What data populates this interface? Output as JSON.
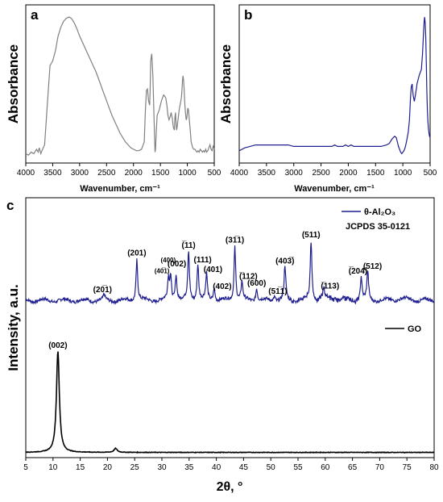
{
  "chart_data": [
    {
      "panel": "a",
      "type": "line",
      "xlabel": "Wavenumber, cm⁻¹",
      "ylabel": "Absorbance",
      "xlim": [
        4000,
        500
      ],
      "x_reversed": true,
      "xticks": [
        "4000",
        "3500",
        "3000",
        "2500",
        "2000",
        "1500",
        "1000",
        "500"
      ],
      "ylim": [
        0,
        1
      ],
      "y_tick_labels": false,
      "color": "#808080",
      "series": [
        {
          "x": [
            4000,
            3950,
            3900,
            3850,
            3800,
            3770,
            3750,
            3720,
            3700,
            3650,
            3600,
            3550,
            3500,
            3450,
            3400,
            3350,
            3300,
            3250,
            3200,
            3150,
            3100,
            3050,
            3000,
            2950,
            2900,
            2850,
            2800,
            2750,
            2700,
            2650,
            2600,
            2550,
            2500,
            2450,
            2400,
            2350,
            2300,
            2250,
            2200,
            2150,
            2100,
            2050,
            2000,
            1950,
            1900,
            1850,
            1800,
            1780,
            1760,
            1740,
            1720,
            1700,
            1690,
            1680,
            1660,
            1640,
            1625,
            1610,
            1600,
            1590,
            1575,
            1560,
            1540,
            1520,
            1500,
            1480,
            1460,
            1440,
            1420,
            1400,
            1380,
            1360,
            1340,
            1320,
            1300,
            1280,
            1260,
            1240,
            1230,
            1220,
            1210,
            1200,
            1190,
            1170,
            1150,
            1130,
            1110,
            1100,
            1090,
            1080,
            1070,
            1060,
            1050,
            1040,
            1030,
            1020,
            1010,
            1000,
            990,
            980,
            970,
            960,
            950,
            940,
            930,
            900,
            880,
            860,
            840,
            820,
            800,
            780,
            760,
            740,
            720,
            700,
            680,
            660,
            640,
            620,
            600,
            580,
            560,
            540,
            520,
            500
          ],
          "y": [
            0.02,
            0.01,
            0.03,
            0.02,
            0.05,
            0.03,
            0.06,
            0.02,
            0.04,
            0.08,
            0.35,
            0.62,
            0.65,
            0.72,
            0.82,
            0.88,
            0.92,
            0.94,
            0.95,
            0.94,
            0.91,
            0.87,
            0.82,
            0.78,
            0.74,
            0.7,
            0.66,
            0.62,
            0.58,
            0.53,
            0.48,
            0.43,
            0.38,
            0.33,
            0.28,
            0.24,
            0.2,
            0.16,
            0.13,
            0.1,
            0.08,
            0.06,
            0.05,
            0.04,
            0.04,
            0.05,
            0.1,
            0.3,
            0.45,
            0.46,
            0.38,
            0.35,
            0.45,
            0.65,
            0.7,
            0.55,
            0.35,
            0.15,
            0.03,
            0.05,
            0.18,
            0.28,
            0.3,
            0.32,
            0.35,
            0.38,
            0.4,
            0.42,
            0.41,
            0.4,
            0.35,
            0.28,
            0.25,
            0.27,
            0.3,
            0.26,
            0.2,
            0.18,
            0.27,
            0.3,
            0.24,
            0.18,
            0.2,
            0.26,
            0.32,
            0.36,
            0.4,
            0.45,
            0.52,
            0.55,
            0.52,
            0.46,
            0.38,
            0.32,
            0.28,
            0.25,
            0.26,
            0.3,
            0.33,
            0.32,
            0.28,
            0.24,
            0.2,
            0.15,
            0.1,
            0.06,
            0.05,
            0.05,
            0.04,
            0.03,
            0.04,
            0.03,
            0.05,
            0.04,
            0.03,
            0.04,
            0.03,
            0.05,
            0.03,
            0.04,
            0.06,
            0.08,
            0.05,
            0.04,
            0.07,
            0.05
          ]
        }
      ]
    },
    {
      "panel": "b",
      "type": "line",
      "xlabel": "Wavenumber, cm⁻¹",
      "ylabel": "Absorbance",
      "xlim": [
        4000,
        500
      ],
      "x_reversed": true,
      "xticks": [
        "4000",
        "3500",
        "3000",
        "2500",
        "2000",
        "1500",
        "1000",
        "500"
      ],
      "ylim": [
        0,
        1
      ],
      "y_tick_labels": false,
      "color": "#1f1f8f",
      "series": [
        {
          "x": [
            4000,
            3950,
            3900,
            3800,
            3700,
            3600,
            3500,
            3400,
            3300,
            3200,
            3100,
            3000,
            2900,
            2800,
            2700,
            2600,
            2500,
            2400,
            2300,
            2250,
            2200,
            2100,
            2050,
            2000,
            1950,
            1900,
            1800,
            1700,
            1600,
            1500,
            1400,
            1300,
            1250,
            1200,
            1150,
            1120,
            1100,
            1080,
            1060,
            1040,
            1020,
            1000,
            980,
            960,
            940,
            920,
            900,
            880,
            860,
            845,
            830,
            820,
            810,
            800,
            790,
            780,
            770,
            760,
            750,
            740,
            720,
            700,
            680,
            660,
            650,
            640,
            630,
            620,
            610,
            600,
            590,
            580,
            570,
            560,
            550,
            540,
            530,
            520,
            510,
            500
          ],
          "y": [
            0.04,
            0.05,
            0.06,
            0.07,
            0.08,
            0.08,
            0.08,
            0.08,
            0.08,
            0.08,
            0.08,
            0.07,
            0.07,
            0.07,
            0.07,
            0.07,
            0.07,
            0.07,
            0.07,
            0.08,
            0.07,
            0.07,
            0.08,
            0.07,
            0.08,
            0.07,
            0.07,
            0.07,
            0.07,
            0.07,
            0.07,
            0.08,
            0.09,
            0.12,
            0.14,
            0.13,
            0.1,
            0.07,
            0.05,
            0.03,
            0.02,
            0.03,
            0.04,
            0.06,
            0.09,
            0.13,
            0.17,
            0.25,
            0.4,
            0.48,
            0.5,
            0.46,
            0.42,
            0.4,
            0.38,
            0.4,
            0.42,
            0.45,
            0.47,
            0.5,
            0.53,
            0.56,
            0.58,
            0.6,
            0.65,
            0.7,
            0.78,
            0.86,
            0.93,
            0.96,
            0.92,
            0.82,
            0.64,
            0.46,
            0.32,
            0.24,
            0.19,
            0.16,
            0.14,
            0.13
          ]
        }
      ]
    },
    {
      "panel": "c",
      "type": "line",
      "xlabel": "2θ, °",
      "ylabel": "Intensity, a.u.",
      "xlim": [
        5,
        80
      ],
      "xticks": [
        5,
        10,
        15,
        20,
        25,
        30,
        35,
        40,
        45,
        50,
        55,
        60,
        65,
        70,
        75,
        80
      ],
      "ylim": [
        0,
        1
      ],
      "y_tick_labels": false,
      "series": [
        {
          "name": "θ-Al₂O₃",
          "legend_sub": "JCPDS 35-0121",
          "color": "#1f1f8f",
          "baseline": 0.605,
          "peaks": [
            {
              "x": 19.4,
              "h": 0.02,
              "label": "(20̅1)"
            },
            {
              "x": 25.4,
              "h": 0.16,
              "label": "(201)"
            },
            {
              "x": 31.2,
              "h": 0.08,
              "label": "(40̅1)"
            },
            {
              "x": 31.6,
              "h": 0.09,
              "label": "(400)"
            },
            {
              "x": 32.6,
              "h": 0.1,
              "label": "(002)"
            },
            {
              "x": 34.9,
              "h": 0.19,
              "label": "(̅11)"
            },
            {
              "x": 36.6,
              "h": 0.14,
              "label": "(111)"
            },
            {
              "x": 38.2,
              "h": 0.1,
              "label": "(401)"
            },
            {
              "x": 39.6,
              "h": 0.05,
              "label": "(402)"
            },
            {
              "x": 43.4,
              "h": 0.21,
              "label": "(31̅1)"
            },
            {
              "x": 44.7,
              "h": 0.07,
              "label": "(̅112)"
            },
            {
              "x": 47.4,
              "h": 0.05,
              "label": "(600)"
            },
            {
              "x": 50.7,
              "h": 0.02,
              "label": "(51̅1)"
            },
            {
              "x": 52.6,
              "h": 0.13,
              "label": "(403̅)"
            },
            {
              "x": 57.4,
              "h": 0.23,
              "label": "(511)"
            },
            {
              "x": 59.7,
              "h": 0.04,
              "label": "(̅113)"
            },
            {
              "x": 66.6,
              "h": 0.09,
              "label": "(̅204)"
            },
            {
              "x": 67.8,
              "h": 0.11,
              "label": "(512)"
            }
          ]
        },
        {
          "name": "GO",
          "color": "#000000",
          "baseline": 0.02,
          "peaks": [
            {
              "x": 10.9,
              "h": 0.39,
              "label": "(002)"
            },
            {
              "x": 21.5,
              "h": 0.015,
              "label": ""
            }
          ]
        }
      ]
    }
  ]
}
